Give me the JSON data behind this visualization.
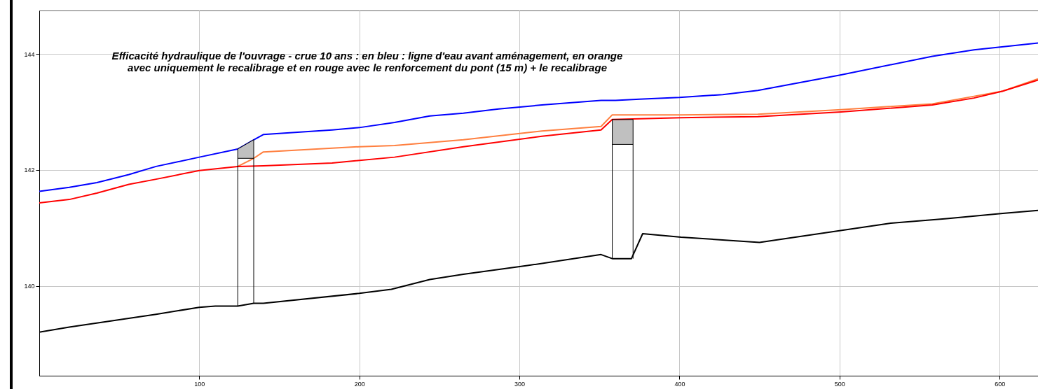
{
  "chart_data": {
    "type": "line",
    "title": "Efficacité hydraulique de l'ouvrage - crue 10 ans : en bleu : ligne d'eau avant aménagement, en orange avec uniquement le recalibrage et en rouge avec le renforcement du pont (15 m) + le recalibrage",
    "xlim": [
      0,
      624
    ],
    "xticks": [
      100,
      200,
      300,
      400,
      500,
      600
    ],
    "ylim": [
      138.45,
      144.75
    ],
    "yticks": [
      140,
      142,
      144
    ],
    "grid": true,
    "series": [
      {
        "color": "#0000ff",
        "x": [
          0,
          18.8,
          36,
          56,
          73,
          100,
          124,
          134,
          140,
          183,
          200,
          222,
          244,
          265,
          287,
          314,
          351,
          360,
          375,
          400,
          427,
          449,
          501,
          558,
          584,
          624
        ],
        "values": [
          141.63,
          141.7,
          141.78,
          141.92,
          142.06,
          142.22,
          142.36,
          142.52,
          142.61,
          142.69,
          142.73,
          142.82,
          142.93,
          142.98,
          143.05,
          143.12,
          143.2,
          143.2,
          143.22,
          143.25,
          143.3,
          143.37,
          143.64,
          143.96,
          144.07,
          144.19
        ]
      },
      {
        "color": "#ff7f3f",
        "x": [
          124,
          134,
          140,
          200,
          222,
          265,
          314,
          351,
          358,
          401,
          449,
          501,
          558,
          584,
          602,
          624
        ],
        "values": [
          142.06,
          142.2,
          142.31,
          142.4,
          142.42,
          142.52,
          142.67,
          142.75,
          142.95,
          142.95,
          142.96,
          143.04,
          143.14,
          143.27,
          143.36,
          143.57
        ]
      },
      {
        "color": "#ff0000",
        "x": [
          0,
          18.8,
          36,
          56,
          73,
          100,
          124,
          140,
          183,
          222,
          265,
          314,
          351,
          358,
          401,
          449,
          501,
          558,
          584,
          602,
          624
        ],
        "values": [
          141.43,
          141.49,
          141.6,
          141.75,
          141.84,
          141.99,
          142.06,
          142.07,
          142.12,
          142.22,
          142.4,
          142.58,
          142.69,
          142.87,
          142.9,
          142.92,
          143,
          143.12,
          143.24,
          143.36,
          143.55
        ]
      },
      {
        "color": "#000000",
        "x": [
          0,
          18.8,
          73,
          100,
          110,
          124,
          134,
          140,
          200,
          220,
          244,
          265,
          305,
          351,
          358,
          370,
          377,
          401,
          450,
          532,
          567,
          602,
          624
        ],
        "values": [
          139.2,
          139.29,
          139.51,
          139.63,
          139.65,
          139.65,
          139.7,
          139.7,
          139.87,
          139.94,
          140.11,
          140.2,
          140.35,
          140.54,
          140.47,
          140.47,
          140.9,
          140.84,
          140.75,
          141.08,
          141.16,
          141.25,
          141.3
        ]
      },
      {
        "type": "area",
        "color": "#c0c0c0",
        "x": [
          124,
          134
        ],
        "values": [
          142.36,
          142.52
        ]
      },
      {
        "color": "#000000",
        "x": [
          124,
          134
        ],
        "values": [
          142.2,
          142.2
        ]
      },
      {
        "type": "area",
        "color": "#c0c0c0",
        "x": [
          358,
          371
        ],
        "values": [
          142.87,
          142.87
        ]
      },
      {
        "color": "#000000",
        "x": [
          358,
          371
        ],
        "values": [
          142.44,
          142.44
        ]
      },
      {
        "color": "#000000",
        "x": [
          124,
          124,
          134,
          134
        ],
        "values": [
          139.65,
          142.36,
          142.52,
          139.7
        ]
      },
      {
        "color": "#000000",
        "x": [
          358,
          358,
          371,
          371
        ],
        "values": [
          140.47,
          142.87,
          142.87,
          140.47
        ]
      }
    ]
  }
}
